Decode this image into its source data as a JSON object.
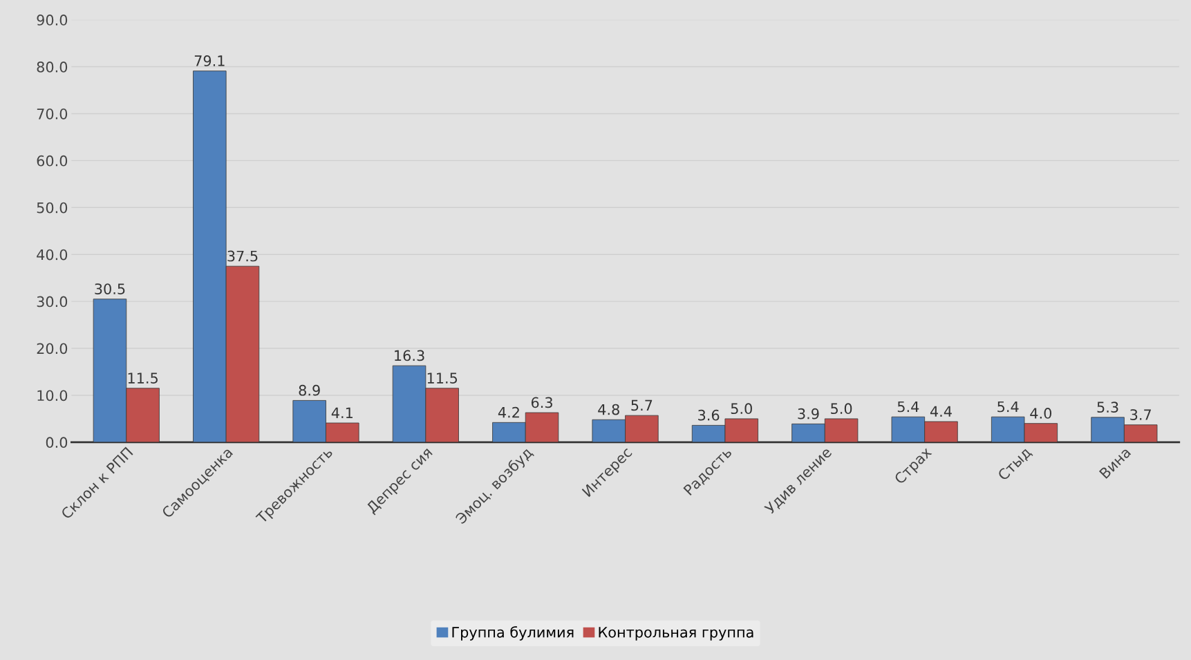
{
  "chart_data": {
    "type": "bar",
    "categories": [
      "Склон к РПП",
      "Самооценка",
      "Тревожность",
      "Депрес сия",
      "Эмоц. возбуд",
      "Интерес",
      "Радость",
      "Удив ление",
      "Страх",
      "Стыд",
      "Вина"
    ],
    "series": [
      {
        "name": "Группа булимия",
        "color": "#4f81bd",
        "values": [
          30.5,
          79.1,
          8.9,
          16.3,
          4.2,
          4.8,
          3.6,
          3.9,
          5.4,
          5.4,
          5.3
        ],
        "value_labels": [
          "30.5",
          "79.1",
          "8.9",
          "16.3",
          "4.2",
          "4.8",
          "3.6",
          "3.9",
          "5.4",
          "5.4",
          "5.3"
        ]
      },
      {
        "name": "Контрольная группа",
        "color": "#c0504d",
        "values": [
          11.5,
          37.5,
          4.1,
          11.5,
          6.3,
          5.7,
          5.0,
          5.0,
          4.4,
          4.0,
          3.7
        ],
        "value_labels": [
          "11.5",
          "37.5",
          "4.1",
          "11.5",
          "6.3",
          "5.7",
          "5.0",
          "5.0",
          "4.4",
          "4.0",
          "3.7"
        ]
      }
    ],
    "ylim": [
      0,
      90
    ],
    "yticks": [
      {
        "value": 0,
        "label": "0.0"
      },
      {
        "value": 10,
        "label": "10.0"
      },
      {
        "value": 20,
        "label": "20.0"
      },
      {
        "value": 30,
        "label": "30.0"
      },
      {
        "value": 40,
        "label": "40.0"
      },
      {
        "value": 50,
        "label": "50.0"
      },
      {
        "value": 60,
        "label": "60.0"
      },
      {
        "value": 70,
        "label": "70.0"
      },
      {
        "value": 80,
        "label": "80.0"
      },
      {
        "value": 90,
        "label": "90.0"
      }
    ],
    "grid": "y",
    "legend": "bottom"
  }
}
